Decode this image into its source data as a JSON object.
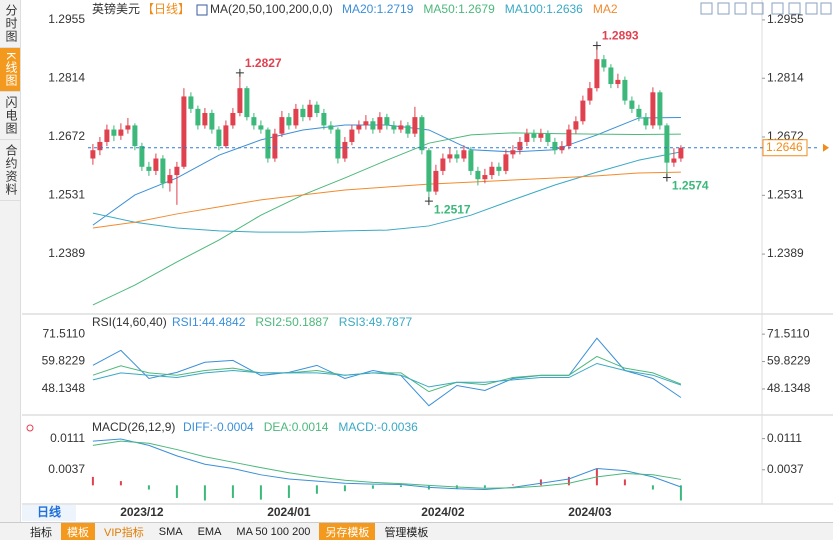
{
  "tabs": [
    "分时图",
    "K线图",
    "闪电图",
    "合约资料"
  ],
  "period_button": "日线",
  "toolbar": [
    "指标",
    "模板",
    "VIP指标",
    "SMA",
    "EMA",
    "MA 50 100 200",
    "另存模板",
    "管理模板"
  ],
  "chart_data": [
    {
      "type": "candlestick",
      "symbol": "英镑美元",
      "period": "【日线】",
      "indicator": "MA(20,50,100,200,0,0)",
      "up_color": "#e0414f",
      "down_color": "#3bb87a",
      "xlim": [
        -0.7,
        95.3
      ],
      "xticks": [
        {
          "value": 7,
          "label": "2023/12"
        },
        {
          "value": 28,
          "label": "2024/01"
        },
        {
          "value": 50,
          "label": "2024/02"
        },
        {
          "value": 71,
          "label": "2024/03"
        }
      ],
      "ylim": [
        1.2249,
        1.2991
      ],
      "yticks": [
        1.2955,
        1.2814,
        1.2672,
        1.2531,
        1.2389
      ],
      "last_price": 1.2646,
      "last_price_color": "#f08c1a",
      "candles": [
        [
          1.262,
          1.2655,
          1.2605,
          1.264
        ],
        [
          1.264,
          1.2672,
          1.2628,
          1.266
        ],
        [
          1.266,
          1.2702,
          1.265,
          1.269
        ],
        [
          1.269,
          1.27,
          1.2662,
          1.2675
        ],
        [
          1.2675,
          1.2705,
          1.2665,
          1.269
        ],
        [
          1.269,
          1.2718,
          1.268,
          1.27
        ],
        [
          1.27,
          1.2705,
          1.264,
          1.265
        ],
        [
          1.265,
          1.2658,
          1.259,
          1.26
        ],
        [
          1.26,
          1.2612,
          1.2578,
          1.259
        ],
        [
          1.259,
          1.2632,
          1.258,
          1.262
        ],
        [
          1.262,
          1.2628,
          1.2548,
          1.256
        ],
        [
          1.256,
          1.2595,
          1.254,
          1.258
        ],
        [
          1.258,
          1.2612,
          1.2508,
          1.26
        ],
        [
          1.26,
          1.279,
          1.2595,
          1.277
        ],
        [
          1.277,
          1.278,
          1.273,
          1.274
        ],
        [
          1.274,
          1.2748,
          1.269,
          1.27
        ],
        [
          1.27,
          1.2742,
          1.2692,
          1.273
        ],
        [
          1.273,
          1.2738,
          1.268,
          1.269
        ],
        [
          1.269,
          1.2698,
          1.264,
          1.265
        ],
        [
          1.265,
          1.2712,
          1.2645,
          1.27
        ],
        [
          1.27,
          1.2742,
          1.2692,
          1.273
        ],
        [
          1.273,
          1.2827,
          1.2722,
          1.279
        ],
        [
          1.279,
          1.2795,
          1.2712,
          1.272
        ],
        [
          1.272,
          1.273,
          1.269,
          1.27
        ],
        [
          1.27,
          1.2712,
          1.268,
          1.269
        ],
        [
          1.269,
          1.2695,
          1.261,
          1.262
        ],
        [
          1.262,
          1.2692,
          1.2612,
          1.268
        ],
        [
          1.268,
          1.2735,
          1.2672,
          1.272
        ],
        [
          1.272,
          1.273,
          1.269,
          1.27
        ],
        [
          1.27,
          1.2752,
          1.2692,
          1.274
        ],
        [
          1.274,
          1.275,
          1.271,
          1.272
        ],
        [
          1.272,
          1.2762,
          1.2712,
          1.275
        ],
        [
          1.275,
          1.2758,
          1.272,
          1.273
        ],
        [
          1.273,
          1.274,
          1.269,
          1.27
        ],
        [
          1.27,
          1.271,
          1.268,
          1.269
        ],
        [
          1.269,
          1.2695,
          1.2608,
          1.262
        ],
        [
          1.262,
          1.2672,
          1.2612,
          1.266
        ],
        [
          1.266,
          1.2702,
          1.2652,
          1.269
        ],
        [
          1.269,
          1.2712,
          1.268,
          1.27
        ],
        [
          1.27,
          1.2725,
          1.269,
          1.271
        ],
        [
          1.271,
          1.2718,
          1.268,
          1.269
        ],
        [
          1.269,
          1.2732,
          1.2682,
          1.272
        ],
        [
          1.272,
          1.2728,
          1.269,
          1.27
        ],
        [
          1.27,
          1.271,
          1.268,
          1.269
        ],
        [
          1.269,
          1.2712,
          1.2682,
          1.27
        ],
        [
          1.27,
          1.2708,
          1.267,
          1.268
        ],
        [
          1.268,
          1.2745,
          1.2672,
          1.272
        ],
        [
          1.272,
          1.2725,
          1.263,
          1.264
        ],
        [
          1.264,
          1.2645,
          1.2517,
          1.254
        ],
        [
          1.254,
          1.2605,
          1.2532,
          1.259
        ],
        [
          1.259,
          1.2632,
          1.258,
          1.262
        ],
        [
          1.262,
          1.2645,
          1.261,
          1.263
        ],
        [
          1.263,
          1.264,
          1.261,
          1.262
        ],
        [
          1.262,
          1.2652,
          1.2612,
          1.264
        ],
        [
          1.264,
          1.2648,
          1.258,
          1.259
        ],
        [
          1.259,
          1.26,
          1.2555,
          1.257
        ],
        [
          1.257,
          1.2595,
          1.256,
          1.258
        ],
        [
          1.258,
          1.2612,
          1.257,
          1.26
        ],
        [
          1.26,
          1.261,
          1.2578,
          1.259
        ],
        [
          1.259,
          1.2642,
          1.2582,
          1.263
        ],
        [
          1.263,
          1.2652,
          1.262,
          1.264
        ],
        [
          1.264,
          1.2672,
          1.263,
          1.266
        ],
        [
          1.266,
          1.2692,
          1.265,
          1.268
        ],
        [
          1.268,
          1.269,
          1.266,
          1.267
        ],
        [
          1.267,
          1.2692,
          1.266,
          1.268
        ],
        [
          1.268,
          1.2688,
          1.265,
          1.266
        ],
        [
          1.266,
          1.267,
          1.263,
          1.264
        ],
        [
          1.264,
          1.2662,
          1.2632,
          1.265
        ],
        [
          1.265,
          1.2702,
          1.2642,
          1.269
        ],
        [
          1.269,
          1.2722,
          1.268,
          1.271
        ],
        [
          1.271,
          1.2772,
          1.2702,
          1.276
        ],
        [
          1.276,
          1.2805,
          1.275,
          1.279
        ],
        [
          1.279,
          1.2893,
          1.2782,
          1.286
        ],
        [
          1.286,
          1.287,
          1.283,
          1.284
        ],
        [
          1.284,
          1.2848,
          1.279,
          1.28
        ],
        [
          1.28,
          1.2825,
          1.279,
          1.281
        ],
        [
          1.281,
          1.2818,
          1.275,
          1.276
        ],
        [
          1.276,
          1.277,
          1.273,
          1.274
        ],
        [
          1.274,
          1.275,
          1.271,
          1.272
        ],
        [
          1.272,
          1.273,
          1.269,
          1.27
        ],
        [
          1.27,
          1.2792,
          1.2692,
          1.278
        ],
        [
          1.278,
          1.2785,
          1.269,
          1.27
        ],
        [
          1.27,
          1.2705,
          1.2574,
          1.261
        ],
        [
          1.261,
          1.2645,
          1.26,
          1.262
        ],
        [
          1.262,
          1.2652,
          1.2612,
          1.2646
        ]
      ],
      "x": [
        0,
        6,
        12,
        18,
        24,
        30,
        36,
        42,
        48,
        54,
        60,
        66,
        72,
        78,
        84
      ],
      "series": [
        {
          "name": "MA20:1.2719",
          "color": "#3b8fd8",
          "values": [
            1.2459,
            1.2532,
            1.2573,
            1.2628,
            1.2665,
            1.2689,
            1.2701,
            1.2701,
            1.2689,
            1.2641,
            1.2636,
            1.2641,
            1.2677,
            1.2718,
            1.2719
          ]
        },
        {
          "name": "MA50:1.2679",
          "color": "#4cb87a",
          "values": [
            1.2266,
            1.2314,
            1.237,
            1.2423,
            1.2483,
            1.2532,
            1.2573,
            1.2616,
            1.2657,
            1.2677,
            1.2682,
            1.268,
            1.2679,
            1.2678,
            1.2679
          ]
        },
        {
          "name": "MA100:1.2636",
          "color": "#39a9c4",
          "values": [
            1.2488,
            1.2466,
            1.2452,
            1.2445,
            1.2442,
            1.2442,
            1.2445,
            1.2447,
            1.2457,
            1.2483,
            1.252,
            1.2556,
            1.2587,
            1.2616,
            1.2636
          ]
        },
        {
          "name": "MA2",
          "color": "#f28a2e",
          "values": [
            1.2452,
            1.2466,
            1.2486,
            1.2503,
            1.252,
            1.2532,
            1.2544,
            1.2551,
            1.2558,
            1.2563,
            1.2568,
            1.2573,
            1.2578,
            1.2585,
            1.2587
          ]
        }
      ],
      "annotations": [
        {
          "x": 21,
          "value": 1.2827,
          "color": "#e0414f",
          "side": "above"
        },
        {
          "x": 72,
          "value": 1.2893,
          "color": "#e0414f",
          "side": "above"
        },
        {
          "x": 48,
          "value": 1.2517,
          "color": "#3bb87a",
          "side": "below"
        },
        {
          "x": 82,
          "value": 1.2574,
          "color": "#3bb87a",
          "side": "below"
        }
      ]
    },
    {
      "type": "line",
      "indicator": "RSI(14,60,40)",
      "xlim": [
        -0.7,
        95.3
      ],
      "ylim": [
        38.3,
        78.4
      ],
      "yticks": [
        {
          "value": 71.511,
          "label": "71.5110"
        },
        59.8229,
        48.1348
      ],
      "x": [
        0,
        4,
        8,
        12,
        16,
        20,
        24,
        28,
        32,
        36,
        40,
        44,
        48,
        52,
        56,
        60,
        64,
        68,
        72,
        76,
        80,
        84
      ],
      "series": [
        {
          "name": "RSI1:44.4842",
          "color": "#3b8fd8",
          "values": [
            58.2,
            64.6,
            52.6,
            55.2,
            59.5,
            60.3,
            53.9,
            55.2,
            58.2,
            52.6,
            56.0,
            53.9,
            41.0,
            49.6,
            47.5,
            52.6,
            53.9,
            53.9,
            69.8,
            56.0,
            52.6,
            44.4842
          ]
        },
        {
          "name": "RSI2:50.1887",
          "color": "#4cb87a",
          "values": [
            54,
            58,
            55,
            54,
            56,
            57,
            55,
            55,
            56,
            54,
            55,
            55,
            47,
            51,
            50,
            53,
            54,
            54,
            62,
            57,
            55,
            50.1887
          ]
        },
        {
          "name": "RSI3:49.7877",
          "color": "#39a9c4",
          "values": [
            52,
            55,
            54,
            53,
            55,
            56,
            55,
            55,
            55,
            54,
            55,
            54,
            49,
            51,
            51,
            52,
            53,
            53,
            59,
            56,
            54,
            49.7877
          ]
        }
      ]
    },
    {
      "type": "macd",
      "indicator": "MACD(26,12,9)",
      "up_color": "#e0414f",
      "down_color": "#3bb87a",
      "xlim": [
        -0.7,
        95.3
      ],
      "ylim": [
        -0.0042,
        0.016
      ],
      "yticks": [
        0.0111,
        0.0037
      ],
      "x": [
        0,
        4,
        8,
        12,
        16,
        20,
        24,
        28,
        32,
        36,
        40,
        44,
        48,
        52,
        56,
        60,
        64,
        68,
        72,
        76,
        80,
        84
      ],
      "series": [
        {
          "name": "DIFF:-0.0004",
          "color": "#3b8fd8",
          "values": [
            0.0105,
            0.011,
            0.0095,
            0.007,
            0.005,
            0.004,
            0.0025,
            0.0015,
            0.001,
            0.0005,
            0.0003,
            0.0002,
            -0.0005,
            -0.0008,
            -0.001,
            -0.0005,
            0.0005,
            0.0015,
            0.004,
            0.0035,
            0.002,
            -0.0004
          ]
        },
        {
          "name": "DEA:0.0014",
          "color": "#4cb87a",
          "values": [
            0.0095,
            0.0105,
            0.01,
            0.0085,
            0.0068,
            0.0055,
            0.0042,
            0.003,
            0.002,
            0.0012,
            0.0007,
            0.0004,
            0.0,
            -0.0004,
            -0.0007,
            -0.0006,
            -0.0002,
            0.0005,
            0.002,
            0.0028,
            0.0025,
            0.0014
          ]
        },
        {
          "name": "MACD:-0.0036",
          "color": "#39a9c4",
          "bars": true,
          "values": [
            0.002,
            0.001,
            -0.001,
            -0.003,
            -0.0036,
            -0.003,
            -0.0034,
            -0.003,
            -0.002,
            -0.0014,
            -0.0008,
            -0.0004,
            -0.001,
            -0.0008,
            -0.0006,
            0.0002,
            0.0014,
            0.002,
            0.004,
            0.0014,
            -0.001,
            -0.0036
          ]
        }
      ]
    }
  ]
}
